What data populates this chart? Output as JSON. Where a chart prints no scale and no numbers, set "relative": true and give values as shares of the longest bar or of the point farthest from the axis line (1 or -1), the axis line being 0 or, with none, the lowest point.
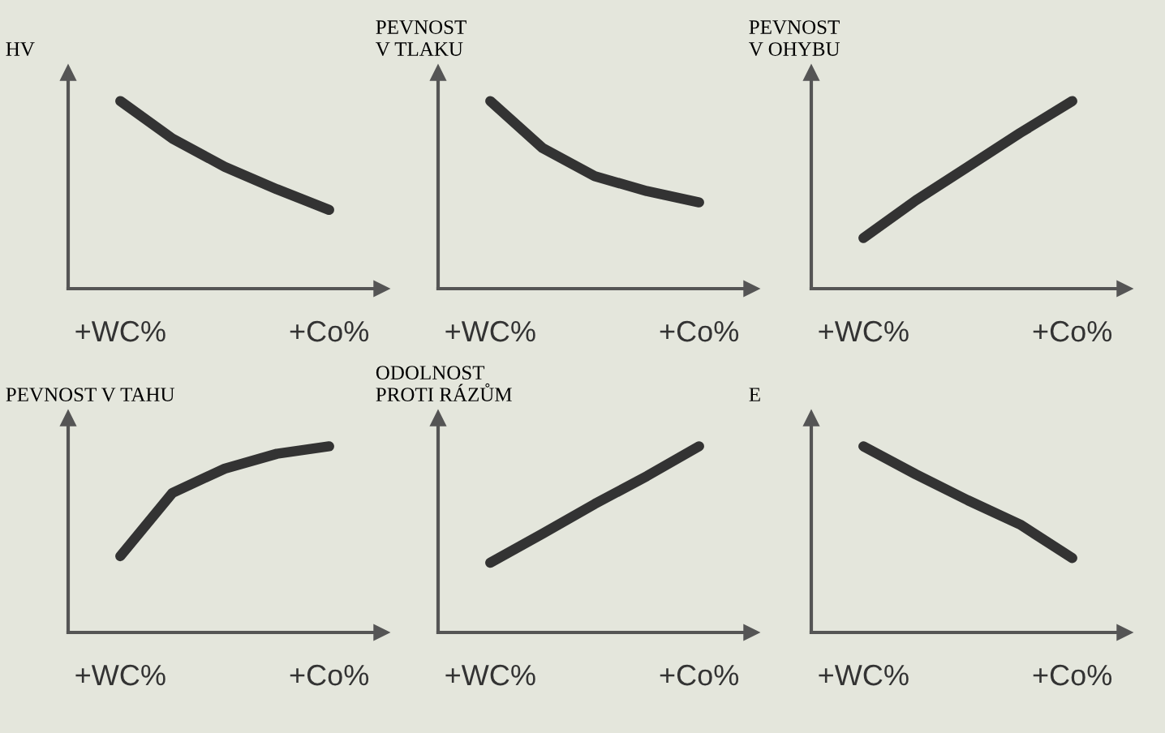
{
  "chart_data": [
    {
      "type": "line",
      "ylabel": "HV",
      "categories": [
        "+WC%",
        null,
        null,
        null,
        "+Co%"
      ],
      "values": [
        1,
        0.8,
        0.65,
        0.53,
        0.42
      ],
      "color": "#333333",
      "relative": true
    },
    {
      "type": "line",
      "ylabel": "PEVNOST\nV TLAKU",
      "categories": [
        "+WC%",
        null,
        null,
        null,
        "+Co%"
      ],
      "values": [
        1,
        0.75,
        0.6,
        0.52,
        0.46
      ],
      "color": "#333333",
      "relative": true
    },
    {
      "type": "line",
      "ylabel": "PEVNOST\nV OHYBU",
      "categories": [
        "+WC%",
        null,
        null,
        null,
        "+Co%"
      ],
      "values": [
        0.27,
        0.47,
        0.65,
        0.83,
        1
      ],
      "color": "#333333",
      "relative": true
    },
    {
      "type": "line",
      "ylabel": "PEVNOST V TAHU",
      "categories": [
        "+WC%",
        null,
        null,
        null,
        "+Co%"
      ],
      "values": [
        0.41,
        0.75,
        0.88,
        0.96,
        1
      ],
      "color": "#333333",
      "relative": true
    },
    {
      "type": "line",
      "ylabel": "ODOLNOST\nPROTI RÁZŮM",
      "categories": [
        "+WC%",
        null,
        null,
        null,
        "+Co%"
      ],
      "values": [
        0.375,
        0.53,
        0.69,
        0.84,
        1
      ],
      "color": "#333333",
      "relative": true
    },
    {
      "type": "line",
      "ylabel": "E",
      "categories": [
        "+WC%",
        null,
        null,
        null,
        "+Co%"
      ],
      "values": [
        1,
        0.85,
        0.71,
        0.58,
        0.4
      ],
      "color": "#333333",
      "relative": true
    }
  ]
}
